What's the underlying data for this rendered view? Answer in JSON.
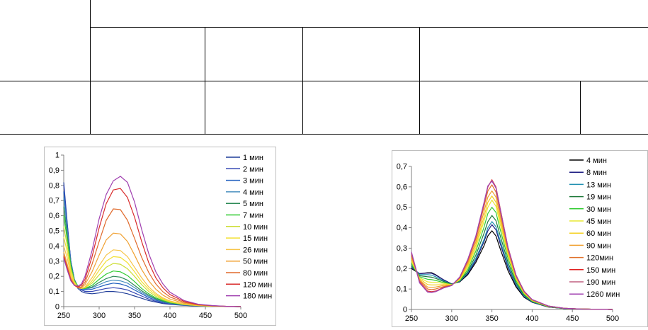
{
  "chart_data": [
    {
      "type": "line",
      "x": [
        250,
        255,
        260,
        265,
        270,
        275,
        280,
        290,
        300,
        310,
        320,
        330,
        340,
        350,
        360,
        370,
        380,
        390,
        400,
        420,
        440,
        460,
        480,
        500
      ],
      "xlim": [
        250,
        500
      ],
      "ylim": [
        0,
        1
      ],
      "xticks": [
        "250",
        "300",
        "350",
        "400",
        "450",
        "500"
      ],
      "yticks": [
        "0",
        "0,1",
        "0,2",
        "0,3",
        "0,4",
        "0,5",
        "0,6",
        "0,7",
        "0,8",
        "0,9",
        "1"
      ],
      "grid": false,
      "legend": "right",
      "series": [
        {
          "name": "1 мин",
          "color": "#1f3d99",
          "values": [
            0.82,
            0.55,
            0.3,
            0.18,
            0.12,
            0.1,
            0.09,
            0.085,
            0.09,
            0.1,
            0.1,
            0.095,
            0.085,
            0.07,
            0.055,
            0.04,
            0.03,
            0.02,
            0.015,
            0.008,
            0.004,
            0.002,
            0.001,
            0.0
          ]
        },
        {
          "name": "2 мин",
          "color": "#3346b3",
          "values": [
            0.8,
            0.54,
            0.3,
            0.18,
            0.13,
            0.11,
            0.1,
            0.1,
            0.11,
            0.12,
            0.125,
            0.12,
            0.11,
            0.09,
            0.07,
            0.05,
            0.035,
            0.025,
            0.018,
            0.009,
            0.004,
            0.002,
            0.001,
            0.0
          ]
        },
        {
          "name": "3 мин",
          "color": "#1f5fbf",
          "values": [
            0.76,
            0.52,
            0.3,
            0.18,
            0.13,
            0.115,
            0.11,
            0.115,
            0.13,
            0.145,
            0.155,
            0.15,
            0.135,
            0.11,
            0.085,
            0.06,
            0.042,
            0.03,
            0.02,
            0.01,
            0.005,
            0.002,
            0.001,
            0.0
          ]
        },
        {
          "name": "4 мин",
          "color": "#4a8fbf",
          "values": [
            0.72,
            0.5,
            0.29,
            0.18,
            0.135,
            0.12,
            0.115,
            0.125,
            0.145,
            0.165,
            0.175,
            0.17,
            0.155,
            0.125,
            0.095,
            0.068,
            0.048,
            0.033,
            0.022,
            0.011,
            0.005,
            0.002,
            0.001,
            0.0
          ]
        },
        {
          "name": "5 мин",
          "color": "#2e8b57",
          "values": [
            0.66,
            0.47,
            0.28,
            0.175,
            0.135,
            0.12,
            0.12,
            0.13,
            0.16,
            0.185,
            0.2,
            0.195,
            0.175,
            0.14,
            0.105,
            0.075,
            0.052,
            0.036,
            0.024,
            0.012,
            0.006,
            0.003,
            0.001,
            0.0
          ]
        },
        {
          "name": "7 мин",
          "color": "#33cc33",
          "values": [
            0.6,
            0.44,
            0.27,
            0.17,
            0.135,
            0.12,
            0.12,
            0.14,
            0.18,
            0.215,
            0.235,
            0.23,
            0.205,
            0.165,
            0.12,
            0.085,
            0.058,
            0.04,
            0.027,
            0.013,
            0.006,
            0.003,
            0.001,
            0.0
          ]
        },
        {
          "name": "10 мин",
          "color": "#ccdd33",
          "values": [
            0.53,
            0.4,
            0.25,
            0.165,
            0.13,
            0.12,
            0.125,
            0.155,
            0.21,
            0.26,
            0.285,
            0.28,
            0.25,
            0.2,
            0.145,
            0.1,
            0.068,
            0.046,
            0.03,
            0.014,
            0.006,
            0.003,
            0.001,
            0.0
          ]
        },
        {
          "name": "15 мин",
          "color": "#f2e033",
          "values": [
            0.46,
            0.36,
            0.23,
            0.16,
            0.125,
            0.12,
            0.125,
            0.17,
            0.24,
            0.3,
            0.33,
            0.325,
            0.29,
            0.23,
            0.165,
            0.115,
            0.078,
            0.052,
            0.034,
            0.015,
            0.007,
            0.003,
            0.001,
            0.0
          ]
        },
        {
          "name": "26 мин",
          "color": "#f7c548",
          "values": [
            0.4,
            0.32,
            0.21,
            0.15,
            0.125,
            0.12,
            0.13,
            0.19,
            0.27,
            0.34,
            0.375,
            0.37,
            0.33,
            0.26,
            0.19,
            0.13,
            0.088,
            0.058,
            0.038,
            0.017,
            0.008,
            0.003,
            0.001,
            0.0
          ]
        },
        {
          "name": "50 мин",
          "color": "#f0a030",
          "values": [
            0.36,
            0.28,
            0.19,
            0.145,
            0.125,
            0.125,
            0.145,
            0.23,
            0.34,
            0.44,
            0.485,
            0.48,
            0.43,
            0.34,
            0.245,
            0.17,
            0.115,
            0.076,
            0.05,
            0.022,
            0.01,
            0.004,
            0.002,
            0.0
          ]
        },
        {
          "name": "80 мин",
          "color": "#e06a2c",
          "values": [
            0.34,
            0.26,
            0.18,
            0.14,
            0.125,
            0.13,
            0.16,
            0.28,
            0.43,
            0.57,
            0.645,
            0.64,
            0.57,
            0.45,
            0.325,
            0.225,
            0.15,
            0.098,
            0.064,
            0.028,
            0.012,
            0.005,
            0.002,
            0.0
          ]
        },
        {
          "name": "120 мин",
          "color": "#d92b2b",
          "values": [
            0.33,
            0.25,
            0.175,
            0.14,
            0.13,
            0.14,
            0.18,
            0.33,
            0.52,
            0.68,
            0.77,
            0.78,
            0.72,
            0.59,
            0.43,
            0.29,
            0.19,
            0.125,
            0.08,
            0.034,
            0.014,
            0.006,
            0.002,
            0.0
          ]
        },
        {
          "name": "180 мин",
          "color": "#a040b0",
          "values": [
            0.32,
            0.24,
            0.17,
            0.14,
            0.135,
            0.15,
            0.2,
            0.37,
            0.58,
            0.74,
            0.83,
            0.86,
            0.82,
            0.69,
            0.51,
            0.35,
            0.23,
            0.15,
            0.095,
            0.04,
            0.016,
            0.007,
            0.002,
            0.0
          ]
        }
      ]
    },
    {
      "type": "line",
      "x": [
        250,
        260,
        270,
        275,
        280,
        290,
        300,
        310,
        320,
        330,
        340,
        345,
        350,
        355,
        360,
        370,
        380,
        390,
        400,
        420,
        440,
        460,
        480,
        500
      ],
      "xlim": [
        250,
        500
      ],
      "ylim": [
        0,
        0.7
      ],
      "xticks": [
        "250",
        "300",
        "350",
        "400",
        "450",
        "500"
      ],
      "yticks": [
        "0",
        "0,1",
        "0,2",
        "0,3",
        "0,4",
        "0,5",
        "0,6",
        "0,7"
      ],
      "grid": false,
      "legend": "right",
      "series": [
        {
          "name": "4 мин",
          "color": "#000000",
          "values": [
            0.2,
            0.175,
            0.18,
            0.18,
            0.17,
            0.145,
            0.125,
            0.135,
            0.17,
            0.23,
            0.31,
            0.36,
            0.385,
            0.36,
            0.3,
            0.19,
            0.11,
            0.06,
            0.035,
            0.012,
            0.005,
            0.002,
            0.001,
            0.0
          ]
        },
        {
          "name": "8 мин",
          "color": "#1a1a80",
          "values": [
            0.205,
            0.175,
            0.178,
            0.177,
            0.168,
            0.145,
            0.125,
            0.137,
            0.175,
            0.24,
            0.33,
            0.385,
            0.415,
            0.39,
            0.325,
            0.205,
            0.118,
            0.064,
            0.036,
            0.012,
            0.005,
            0.002,
            0.001,
            0.0
          ]
        },
        {
          "name": "13 мин",
          "color": "#1f8fb0",
          "values": [
            0.21,
            0.17,
            0.17,
            0.168,
            0.16,
            0.14,
            0.124,
            0.138,
            0.18,
            0.25,
            0.34,
            0.4,
            0.43,
            0.405,
            0.34,
            0.215,
            0.122,
            0.066,
            0.037,
            0.013,
            0.005,
            0.002,
            0.001,
            0.0
          ]
        },
        {
          "name": "19 мин",
          "color": "#1f7a3a",
          "values": [
            0.215,
            0.165,
            0.16,
            0.158,
            0.152,
            0.137,
            0.123,
            0.14,
            0.185,
            0.265,
            0.37,
            0.43,
            0.46,
            0.435,
            0.365,
            0.23,
            0.13,
            0.07,
            0.039,
            0.013,
            0.005,
            0.002,
            0.001,
            0.0
          ]
        },
        {
          "name": "30 мин",
          "color": "#33cc33",
          "values": [
            0.225,
            0.16,
            0.148,
            0.146,
            0.142,
            0.132,
            0.122,
            0.142,
            0.195,
            0.285,
            0.4,
            0.47,
            0.5,
            0.475,
            0.395,
            0.25,
            0.14,
            0.075,
            0.041,
            0.014,
            0.006,
            0.002,
            0.001,
            0.0
          ]
        },
        {
          "name": "45 мин",
          "color": "#e8e833",
          "values": [
            0.235,
            0.155,
            0.135,
            0.133,
            0.132,
            0.128,
            0.121,
            0.145,
            0.205,
            0.3,
            0.43,
            0.5,
            0.535,
            0.505,
            0.42,
            0.265,
            0.148,
            0.079,
            0.043,
            0.015,
            0.006,
            0.002,
            0.001,
            0.0
          ]
        },
        {
          "name": "60 мин",
          "color": "#f5d020",
          "values": [
            0.245,
            0.15,
            0.122,
            0.12,
            0.12,
            0.122,
            0.12,
            0.148,
            0.215,
            0.315,
            0.45,
            0.525,
            0.555,
            0.525,
            0.44,
            0.275,
            0.153,
            0.082,
            0.044,
            0.015,
            0.006,
            0.002,
            0.001,
            0.0
          ]
        },
        {
          "name": "90 мин",
          "color": "#f0a030",
          "values": [
            0.255,
            0.145,
            0.11,
            0.108,
            0.11,
            0.117,
            0.119,
            0.152,
            0.225,
            0.33,
            0.475,
            0.55,
            0.58,
            0.55,
            0.46,
            0.285,
            0.158,
            0.085,
            0.046,
            0.016,
            0.006,
            0.002,
            0.001,
            0.0
          ]
        },
        {
          "name": "120мин",
          "color": "#e0702a",
          "values": [
            0.265,
            0.14,
            0.1,
            0.097,
            0.1,
            0.112,
            0.118,
            0.155,
            0.235,
            0.345,
            0.5,
            0.58,
            0.61,
            0.575,
            0.48,
            0.295,
            0.163,
            0.087,
            0.047,
            0.016,
            0.006,
            0.002,
            0.001,
            0.0
          ]
        },
        {
          "name": "150 мин",
          "color": "#e02020",
          "values": [
            0.275,
            0.135,
            0.09,
            0.087,
            0.09,
            0.108,
            0.117,
            0.158,
            0.242,
            0.355,
            0.515,
            0.6,
            0.635,
            0.6,
            0.5,
            0.305,
            0.168,
            0.09,
            0.048,
            0.017,
            0.006,
            0.002,
            0.001,
            0.0
          ]
        },
        {
          "name": "190 мин",
          "color": "#c06080",
          "values": [
            0.278,
            0.133,
            0.087,
            0.085,
            0.088,
            0.106,
            0.117,
            0.158,
            0.243,
            0.357,
            0.517,
            0.602,
            0.632,
            0.598,
            0.498,
            0.304,
            0.167,
            0.09,
            0.048,
            0.017,
            0.006,
            0.002,
            0.001,
            0.0
          ]
        },
        {
          "name": "1260 мин",
          "color": "#a040b0",
          "values": [
            0.282,
            0.13,
            0.085,
            0.083,
            0.087,
            0.105,
            0.117,
            0.159,
            0.245,
            0.36,
            0.52,
            0.605,
            0.628,
            0.594,
            0.495,
            0.302,
            0.166,
            0.089,
            0.048,
            0.017,
            0.006,
            0.002,
            0.001,
            0.0
          ]
        }
      ]
    }
  ]
}
